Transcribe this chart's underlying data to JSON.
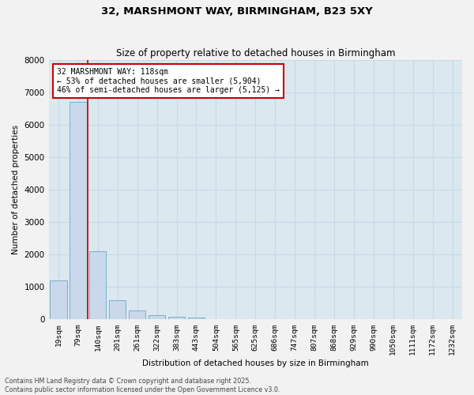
{
  "title1": "32, MARSHMONT WAY, BIRMINGHAM, B23 5XY",
  "title2": "Size of property relative to detached houses in Birmingham",
  "xlabel": "Distribution of detached houses by size in Birmingham",
  "ylabel": "Number of detached properties",
  "categories": [
    "19sqm",
    "79sqm",
    "140sqm",
    "201sqm",
    "261sqm",
    "322sqm",
    "383sqm",
    "443sqm",
    "504sqm",
    "565sqm",
    "625sqm",
    "686sqm",
    "747sqm",
    "807sqm",
    "868sqm",
    "929sqm",
    "990sqm",
    "1050sqm",
    "1111sqm",
    "1172sqm",
    "1232sqm"
  ],
  "values": [
    1200,
    6700,
    2100,
    600,
    280,
    130,
    80,
    50,
    20,
    5,
    3,
    2,
    1,
    1,
    0,
    0,
    0,
    0,
    0,
    0,
    0
  ],
  "bar_color": "#c9d9eb",
  "bar_edgecolor": "#7aaec8",
  "vline_color": "#cc0000",
  "vline_pos": 1.5,
  "ylim": [
    0,
    8000
  ],
  "yticks": [
    0,
    1000,
    2000,
    3000,
    4000,
    5000,
    6000,
    7000,
    8000
  ],
  "annotation_box_text": "32 MARSHMONT WAY: 118sqm\n← 53% of detached houses are smaller (5,904)\n46% of semi-detached houses are larger (5,125) →",
  "annotation_box_color": "#cc0000",
  "footer_text": "Contains HM Land Registry data © Crown copyright and database right 2025.\nContains public sector information licensed under the Open Government Licence v3.0.",
  "grid_color": "#c8d8e8",
  "background_color": "#dce8f0",
  "fig_facecolor": "#f2f2f2",
  "bar_width": 0.85,
  "figsize": [
    6.0,
    5.0
  ],
  "dpi": 100
}
